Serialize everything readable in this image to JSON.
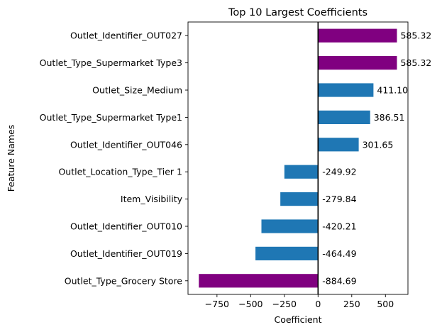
{
  "chart_data": {
    "type": "bar",
    "orientation": "horizontal",
    "title": "Top 10 Largest Coefficients",
    "xlabel": "Coefficient",
    "ylabel": "Feature Names",
    "xlim": [
      -965,
      667
    ],
    "xticks": [
      -750,
      -500,
      -250,
      0,
      250,
      500
    ],
    "xtick_labels": [
      "−750",
      "−500",
      "−250",
      "0",
      "250",
      "500"
    ],
    "grid": false,
    "categories": [
      "Outlet_Identifier_OUT027",
      "Outlet_Type_Supermarket Type3",
      "Outlet_Size_Medium",
      "Outlet_Type_Supermarket Type1",
      "Outlet_Identifier_OUT046",
      "Outlet_Location_Type_Tier 1",
      "Item_Visibility",
      "Outlet_Identifier_OUT010",
      "Outlet_Identifier_OUT019",
      "Outlet_Type_Grocery Store"
    ],
    "values": [
      585.32,
      585.32,
      411.1,
      386.51,
      301.65,
      -249.92,
      -279.84,
      -420.21,
      -464.49,
      -884.69
    ],
    "value_labels": [
      "585.32",
      "585.32",
      "411.10",
      "386.51",
      "301.65",
      "-249.92",
      "-279.84",
      "-420.21",
      "-464.49",
      "-884.69"
    ],
    "bar_colors": [
      "#800080",
      "#800080",
      "#1f77b4",
      "#1f77b4",
      "#1f77b4",
      "#1f77b4",
      "#1f77b4",
      "#1f77b4",
      "#1f77b4",
      "#800080"
    ],
    "zero_line": true
  }
}
